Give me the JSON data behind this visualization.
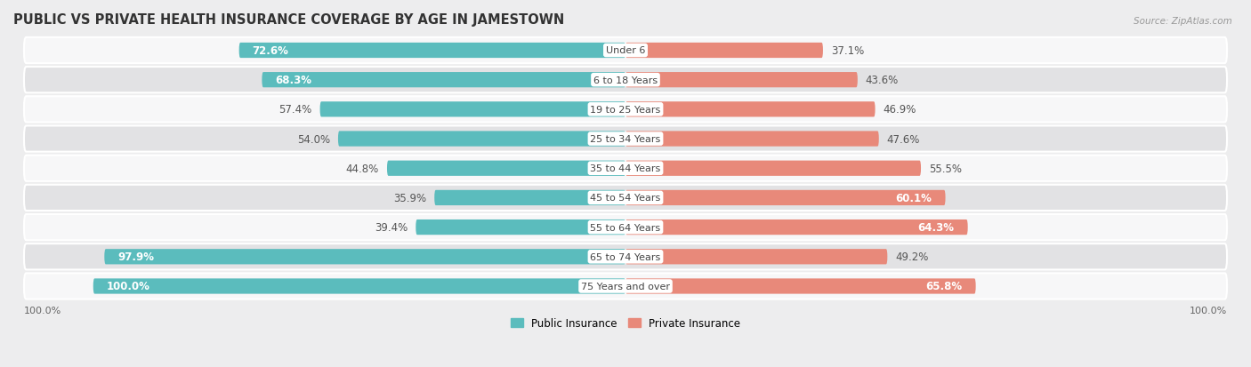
{
  "title": "PUBLIC VS PRIVATE HEALTH INSURANCE COVERAGE BY AGE IN JAMESTOWN",
  "source": "Source: ZipAtlas.com",
  "categories": [
    "Under 6",
    "6 to 18 Years",
    "19 to 25 Years",
    "25 to 34 Years",
    "35 to 44 Years",
    "45 to 54 Years",
    "55 to 64 Years",
    "65 to 74 Years",
    "75 Years and over"
  ],
  "public_values": [
    72.6,
    68.3,
    57.4,
    54.0,
    44.8,
    35.9,
    39.4,
    97.9,
    100.0
  ],
  "private_values": [
    37.1,
    43.6,
    46.9,
    47.6,
    55.5,
    60.1,
    64.3,
    49.2,
    65.8
  ],
  "public_color": "#5bbcbd",
  "private_color": "#e8897a",
  "bg_color": "#ededee",
  "row_bg_light": "#f7f7f8",
  "row_bg_dark": "#e2e2e4",
  "title_fontsize": 10.5,
  "label_fontsize": 8.5,
  "bar_height": 0.52,
  "max_value": 100.0,
  "pub_label_white_threshold": 60.0,
  "priv_label_white_threshold": 58.0
}
